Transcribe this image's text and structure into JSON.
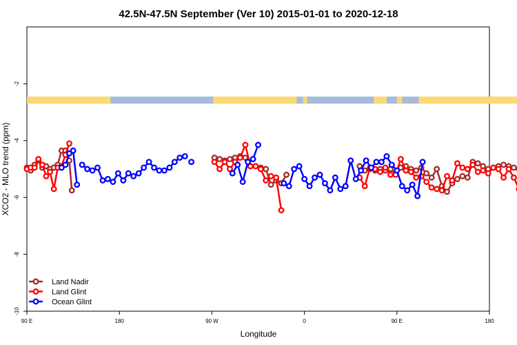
{
  "chart_data": {
    "type": "line",
    "title": "42.5N-47.5N September (Ver 10)   2015-01-01 to 2020-12-18",
    "xlabel": "Longitude",
    "ylabel": "XCO2 - MLO trend (ppm)",
    "xlim": [
      90,
      450
    ],
    "ylim": [
      -10,
      0
    ],
    "x_ticks": [
      90,
      180,
      270,
      360,
      450
    ],
    "x_tick_labels": [
      "90 E",
      "180",
      "90 W",
      "0",
      "90 E",
      "180"
    ],
    "y_ticks": [
      -2,
      -4,
      -6,
      -8,
      -10
    ],
    "y_tick_labels": [
      "-2",
      "-4",
      "-6",
      "-8",
      "-10"
    ],
    "land_mask_band": {
      "y_top": -2.45,
      "y_bottom": -2.7,
      "land_color": "#fdd976",
      "ocean_color": "#a7bcd9"
    },
    "legend_position": "bottom-left",
    "series": [
      {
        "name": "Land Nadir",
        "color": "#a52a2a",
        "points": [
          [
            90,
            -4.95
          ],
          [
            93,
            -5.05
          ],
          [
            96,
            -4.85
          ],
          [
            99,
            -4.7
          ],
          [
            102,
            -4.95
          ],
          [
            105,
            -4.9
          ],
          [
            108,
            -5.0
          ],
          [
            111,
            -4.95
          ],
          [
            114,
            -4.85
          ],
          [
            117,
            -4.35
          ],
          [
            120,
            -4.35
          ],
          [
            123,
            -4.7
          ],
          [
            125,
            -5.75
          ],
          [
            236,
            -4.6
          ],
          [
            240,
            -4.65
          ],
          [
            244,
            -4.7
          ],
          [
            248,
            -4.65
          ],
          [
            252,
            -4.6
          ],
          [
            256,
            -4.55
          ],
          [
            260,
            -4.6
          ],
          [
            264,
            -4.9
          ],
          [
            268,
            -4.9
          ],
          [
            272,
            -4.95
          ],
          [
            276,
            -5.0
          ],
          [
            280,
            -5.55
          ],
          [
            284,
            -5.4
          ],
          [
            288,
            -5.5
          ],
          [
            292,
            -5.2
          ],
          [
            349,
            -4.9
          ],
          [
            353,
            -5.05
          ],
          [
            357,
            -5.0
          ],
          [
            361,
            -5.05
          ],
          [
            365,
            -5.0
          ],
          [
            369,
            -5.05
          ],
          [
            373,
            -5.0
          ],
          [
            377,
            -5.15
          ],
          [
            381,
            -4.95
          ],
          [
            385,
            -4.9
          ],
          [
            389,
            -5.0
          ],
          [
            393,
            -5.05
          ],
          [
            397,
            -4.95
          ],
          [
            401,
            -5.15
          ],
          [
            405,
            -5.3
          ],
          [
            409,
            -5.0
          ],
          [
            413,
            -5.6
          ],
          [
            417,
            -5.8
          ],
          [
            421,
            -5.5
          ],
          [
            425,
            -5.35
          ],
          [
            429,
            -5.25
          ],
          [
            433,
            -5.3
          ],
          [
            437,
            -4.75
          ],
          [
            441,
            -4.8
          ],
          [
            445,
            -4.9
          ],
          [
            449,
            -5.0
          ],
          [
            453,
            -4.95
          ],
          [
            457,
            -4.9
          ],
          [
            461,
            -4.85
          ],
          [
            465,
            -4.9
          ],
          [
            469,
            -4.95
          ],
          [
            473,
            -5.0
          ],
          [
            477,
            -5.0
          ],
          [
            481,
            -4.95
          ],
          [
            485,
            -4.35
          ],
          [
            489,
            -4.5
          ],
          [
            493,
            -4.65
          ],
          [
            497,
            -5.75
          ]
        ]
      },
      {
        "name": "Land Glint",
        "color": "#ff0000",
        "points": [
          [
            90,
            -5.0
          ],
          [
            93,
            -4.95
          ],
          [
            96,
            -4.95
          ],
          [
            99,
            -4.65
          ],
          [
            102,
            -4.85
          ],
          [
            105,
            -5.25
          ],
          [
            108,
            -5.1
          ],
          [
            111,
            -5.7
          ],
          [
            114,
            -4.95
          ],
          [
            117,
            -4.9
          ],
          [
            120,
            -4.5
          ],
          [
            123,
            -4.1
          ],
          [
            236,
            -4.75
          ],
          [
            240,
            -5.0
          ],
          [
            244,
            -4.75
          ],
          [
            248,
            -5.0
          ],
          [
            252,
            -4.75
          ],
          [
            256,
            -4.6
          ],
          [
            260,
            -4.15
          ],
          [
            264,
            -4.9
          ],
          [
            268,
            -4.9
          ],
          [
            272,
            -5.0
          ],
          [
            276,
            -5.4
          ],
          [
            280,
            -5.25
          ],
          [
            284,
            -5.3
          ],
          [
            288,
            -6.45
          ],
          [
            349,
            -5.3
          ],
          [
            353,
            -5.6
          ],
          [
            357,
            -4.95
          ],
          [
            361,
            -5.0
          ],
          [
            365,
            -5.1
          ],
          [
            369,
            -4.95
          ],
          [
            373,
            -5.2
          ],
          [
            377,
            -5.2
          ],
          [
            381,
            -4.65
          ],
          [
            385,
            -5.05
          ],
          [
            389,
            -5.1
          ],
          [
            393,
            -5.3
          ],
          [
            397,
            -5.25
          ],
          [
            401,
            -5.45
          ],
          [
            405,
            -5.65
          ],
          [
            409,
            -5.7
          ],
          [
            413,
            -5.75
          ],
          [
            417,
            -5.25
          ],
          [
            421,
            -5.4
          ],
          [
            425,
            -4.8
          ],
          [
            429,
            -4.95
          ],
          [
            433,
            -5.0
          ],
          [
            437,
            -4.85
          ],
          [
            441,
            -5.1
          ],
          [
            445,
            -5.05
          ],
          [
            449,
            -5.15
          ],
          [
            453,
            -4.95
          ],
          [
            457,
            -5.0
          ],
          [
            461,
            -5.3
          ],
          [
            465,
            -5.0
          ],
          [
            469,
            -5.3
          ],
          [
            473,
            -5.7
          ],
          [
            477,
            -4.6
          ],
          [
            481,
            -5.05
          ],
          [
            485,
            -4.4
          ],
          [
            489,
            -4.1
          ]
        ]
      },
      {
        "name": "Ocean Glint",
        "color": "#0000ff",
        "points": [
          [
            133,
            -4.85
          ],
          [
            137,
            -5.0
          ],
          [
            141,
            -5.05
          ],
          [
            145,
            -4.95
          ],
          [
            149,
            -5.4
          ],
          [
            153,
            -5.35
          ],
          [
            157,
            -5.45
          ],
          [
            161,
            -5.15
          ],
          [
            165,
            -5.4
          ],
          [
            169,
            -5.15
          ],
          [
            173,
            -5.25
          ],
          [
            177,
            -5.15
          ],
          [
            181,
            -4.95
          ],
          [
            185,
            -4.75
          ],
          [
            189,
            -4.95
          ],
          [
            193,
            -5.05
          ],
          [
            197,
            -5.05
          ],
          [
            201,
            -4.95
          ],
          [
            205,
            -4.75
          ],
          [
            209,
            -4.6
          ],
          [
            213,
            -4.55
          ],
          [
            129,
            -5.55
          ],
          [
            126,
            -4.35
          ],
          [
            123,
            -4.45
          ],
          [
            120,
            -4.85
          ],
          [
            117,
            -4.95
          ],
          [
            218,
            -4.75
          ],
          [
            290,
            -5.5
          ],
          [
            294,
            -5.6
          ],
          [
            298,
            -5.0
          ],
          [
            302,
            -4.9
          ],
          [
            306,
            -5.35
          ],
          [
            310,
            -5.6
          ],
          [
            314,
            -5.3
          ],
          [
            318,
            -5.2
          ],
          [
            322,
            -5.5
          ],
          [
            326,
            -5.75
          ],
          [
            330,
            -5.3
          ],
          [
            334,
            -5.7
          ],
          [
            338,
            -5.6
          ],
          [
            342,
            -4.7
          ],
          [
            346,
            -5.35
          ],
          [
            350,
            -5.05
          ],
          [
            354,
            -4.7
          ],
          [
            358,
            -4.95
          ],
          [
            362,
            -4.75
          ],
          [
            366,
            -4.75
          ],
          [
            370,
            -4.55
          ],
          [
            374,
            -4.85
          ],
          [
            378,
            -5.05
          ],
          [
            382,
            -5.6
          ],
          [
            386,
            -5.75
          ],
          [
            390,
            -5.55
          ],
          [
            394,
            -5.95
          ],
          [
            398,
            -4.75
          ],
          [
            270,
            -4.15
          ],
          [
            266,
            -4.65
          ],
          [
            262,
            -4.75
          ],
          [
            258,
            -5.45
          ],
          [
            254,
            -4.85
          ],
          [
            250,
            -5.15
          ]
        ]
      }
    ]
  }
}
